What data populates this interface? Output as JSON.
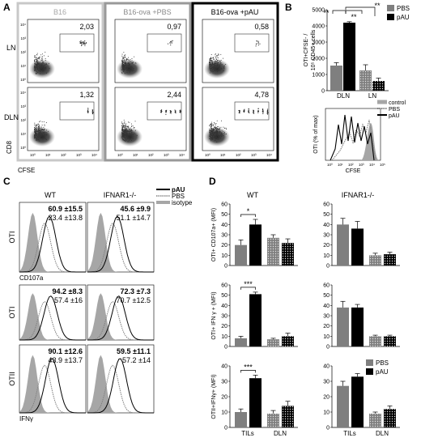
{
  "panelA": {
    "letter": "A",
    "columns": [
      "B16",
      "B16-ova +PBS",
      "B16-ova +pAU"
    ],
    "rows": [
      "LN",
      "DLN"
    ],
    "gate_values": [
      [
        "2,03",
        "0,97",
        "0,58"
      ],
      [
        "1,32",
        "2,44",
        "4,78"
      ]
    ],
    "xlabel": "CFSE",
    "ylabel": "CD8",
    "tick_labels": [
      "10⁰",
      "10¹",
      "10²",
      "10³",
      "10⁴"
    ]
  },
  "panelB": {
    "letter": "B",
    "bar_chart": {
      "type": "bar",
      "ylabel_line1": "OTI+CFSE- /",
      "ylabel_line2": "10⁵ CD45+ cells",
      "ylim": [
        0,
        5000
      ],
      "yticks": [
        "0",
        "1000",
        "2000",
        "3000",
        "4000",
        "5000"
      ],
      "groups": [
        "DLN",
        "LN"
      ],
      "series": [
        {
          "name": "PBS",
          "values": [
            1550,
            1250
          ],
          "errors": [
            180,
            350
          ]
        },
        {
          "name": "pAU",
          "values": [
            4200,
            600
          ],
          "errors": [
            60,
            180
          ]
        }
      ],
      "significance": [
        "**",
        "**",
        "**"
      ]
    },
    "histogram": {
      "legend": [
        "control",
        "PBS",
        "pAU"
      ],
      "ylabel": "OTI (% of max)",
      "xlabel": "CFSE",
      "ticks": [
        "10⁰",
        "10¹",
        "10²",
        "10³",
        "10⁴",
        "10⁵"
      ]
    }
  },
  "panelC": {
    "letter": "C",
    "col_headers": [
      "WT",
      "IFNAR1-/-"
    ],
    "legend": [
      "pAU",
      "PBS",
      "isotype"
    ],
    "rows": [
      {
        "ylabel": "OTI",
        "xlabel": "CD107a",
        "wt": [
          "60.9 ±15.5",
          "23.4 ±13.8"
        ],
        "ko": [
          "45.6 ±9.9",
          "51.1 ±14.7"
        ]
      },
      {
        "ylabel": "OTI",
        "xlabel": "",
        "wt": [
          "94.2 ±8.3",
          "57.4 ±16"
        ],
        "ko": [
          "72.3 ±7.3",
          "70.7 ±12.5"
        ]
      },
      {
        "ylabel": "OTII",
        "xlabel": "IFNγ",
        "wt": [
          "90.1 ±12.6",
          "43.9 ±13.7"
        ],
        "ko": [
          "59.5 ±11.1",
          "57.2 ±14"
        ]
      }
    ]
  },
  "panelD": {
    "letter": "D",
    "col_headers": [
      "WT",
      "IFNAR1-/-"
    ],
    "categories": [
      "TILs",
      "DLN"
    ],
    "legend": [
      "PBS",
      "pAU"
    ],
    "ylim": [
      0,
      80
    ],
    "yticks": [
      "0",
      "20",
      "40",
      "60",
      "80"
    ],
    "chart_data": [
      {
        "type": "bar",
        "ylabel": "OTI+ CD107a+ (MFI)",
        "ylim": [
          0,
          60
        ],
        "yticks": [
          "0",
          "10",
          "20",
          "30",
          "40",
          "50",
          "60"
        ],
        "wt": {
          "values": [
            20,
            40,
            27,
            22
          ],
          "errors": [
            5,
            5,
            3,
            4
          ],
          "sig": "*"
        },
        "ko": {
          "values": [
            40,
            36,
            10,
            11
          ],
          "errors": [
            6,
            7,
            2,
            2
          ],
          "sig": ""
        }
      },
      {
        "type": "bar",
        "ylabel": "OTI+ IFN γ + (MFI)",
        "ylim": [
          0,
          60
        ],
        "yticks": [
          "0",
          "10",
          "20",
          "30",
          "40",
          "50",
          "60"
        ],
        "wt": {
          "values": [
            8,
            51,
            7,
            10
          ],
          "errors": [
            2,
            2,
            1,
            3
          ],
          "sig": "***"
        },
        "ko": {
          "values": [
            38,
            38,
            10,
            10
          ],
          "errors": [
            6,
            3,
            1,
            1
          ],
          "sig": ""
        }
      },
      {
        "type": "bar",
        "ylabel": "OTII+IFNγ+ (MFI)",
        "ylim": [
          0,
          40
        ],
        "yticks": [
          "0",
          "10",
          "20",
          "30",
          "40"
        ],
        "wt": {
          "values": [
            10,
            32,
            9,
            14
          ],
          "errors": [
            2,
            2,
            2,
            3
          ],
          "sig": "***"
        },
        "ko": {
          "values": [
            27,
            33,
            9,
            12
          ],
          "errors": [
            3,
            2,
            1,
            2
          ],
          "sig": ""
        }
      }
    ]
  },
  "colors": {
    "pbs": "#7f7f7f",
    "pau": "#000000",
    "isotype": "#a6a6a6",
    "frame_b16": "#c8c8c8",
    "frame_pbs": "#999999",
    "frame_pau": "#000000"
  }
}
